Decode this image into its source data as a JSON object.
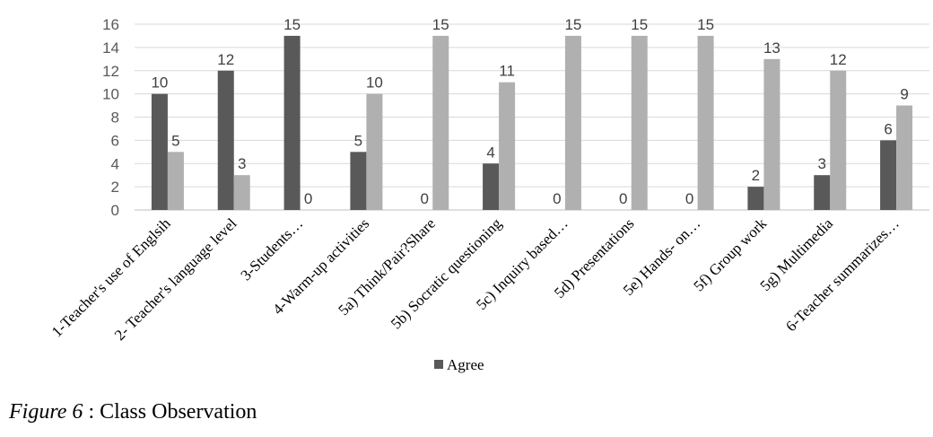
{
  "caption": {
    "prefix": "Figure 6",
    "text": " : Class Observation"
  },
  "colors": {
    "agree": "#595959",
    "second": "#b0b0b0",
    "grid": "#d9d9d9",
    "axis": "#bfbfbf"
  },
  "chart_data": {
    "type": "bar",
    "categories": [
      "1-Teacher's use of Englsih",
      "2- Teacher's language level",
      "3-Students…",
      "4-Warm-up activities",
      "5a)     Think/Pair?Share",
      "5b)     Socratic questioning",
      "5c)     Inquiry based…",
      "5d)     Presentations",
      "5e)     Hands- on…",
      "5f)     Group work",
      "5g)     Multimedia",
      "6-Teacher summarizes…"
    ],
    "series": [
      {
        "name": "Agree",
        "values": [
          10,
          12,
          15,
          5,
          0,
          4,
          0,
          0,
          0,
          2,
          3,
          6
        ]
      },
      {
        "values": [
          5,
          3,
          0,
          10,
          15,
          11,
          15,
          15,
          15,
          13,
          12,
          9
        ]
      }
    ],
    "yticks": [
      "0",
      "2",
      "4",
      "6",
      "8",
      "10",
      "12",
      "14",
      "16"
    ],
    "ylim": [
      0,
      16
    ],
    "grid": true,
    "legend": "bottom-center"
  }
}
